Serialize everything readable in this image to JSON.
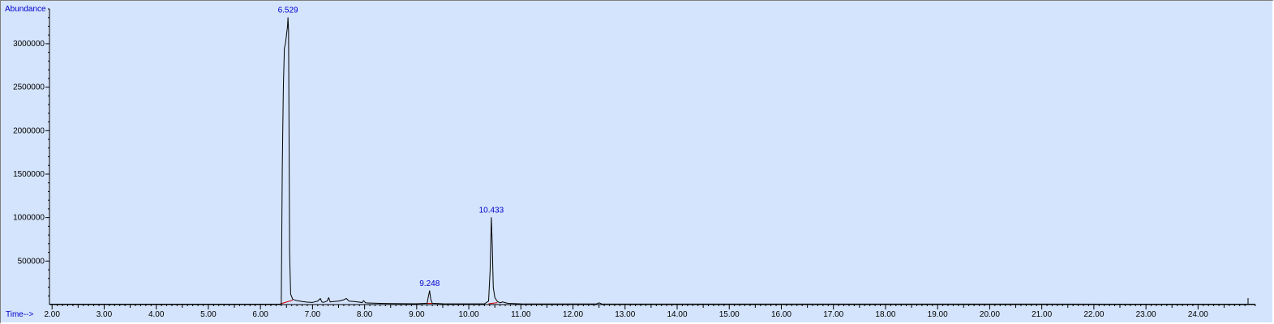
{
  "chart_data": {
    "type": "line",
    "xlabel": "Time-->",
    "ylabel": "Abundance",
    "xlim": [
      1.95,
      25.1
    ],
    "ylim": [
      0,
      3400000
    ],
    "x_ticks": [
      2.0,
      3.0,
      4.0,
      5.0,
      6.0,
      7.0,
      8.0,
      9.0,
      10.0,
      11.0,
      12.0,
      13.0,
      14.0,
      15.0,
      16.0,
      17.0,
      18.0,
      19.0,
      20.0,
      21.0,
      22.0,
      23.0,
      24.0
    ],
    "x_tick_labels": [
      "2.00",
      "3.00",
      "4.00",
      "5.00",
      "6.00",
      "7.00",
      "8.00",
      "9.00",
      "10.00",
      "11.00",
      "12.00",
      "13.00",
      "14.00",
      "15.00",
      "16.00",
      "17.00",
      "18.00",
      "19.00",
      "20.00",
      "21.00",
      "22.00",
      "23.00",
      "24.00"
    ],
    "y_ticks": [
      500000,
      1000000,
      1500000,
      2000000,
      2500000,
      3000000
    ],
    "y_tick_labels": [
      "500000",
      "1000000",
      "1500000",
      "2000000",
      "2500000",
      "3000000"
    ],
    "series": [
      {
        "color": "#000000",
        "x": [
          1.95,
          6.3,
          6.4,
          6.42,
          6.44,
          6.46,
          6.48,
          6.5,
          6.52,
          6.529,
          6.54,
          6.56,
          6.58,
          6.62,
          6.7,
          6.8,
          6.9,
          7.0,
          7.1,
          7.15,
          7.18,
          7.21,
          7.28,
          7.31,
          7.34,
          7.4,
          7.5,
          7.6,
          7.65,
          7.7,
          7.8,
          7.9,
          7.95,
          7.98,
          8.02,
          8.1,
          8.3,
          8.5,
          8.7,
          9.0,
          9.2,
          9.22,
          9.248,
          9.27,
          9.3,
          9.5,
          10.0,
          10.3,
          10.38,
          10.41,
          10.433,
          10.45,
          10.47,
          10.5,
          10.55,
          10.6,
          10.65,
          10.75,
          11.0,
          12.0,
          12.45,
          12.5,
          12.55,
          13.0,
          25.1
        ],
        "y": [
          5000,
          5000,
          5000,
          1600000,
          2500000,
          2950000,
          3000000,
          3100000,
          3200000,
          3300000,
          3150000,
          600000,
          120000,
          60000,
          45000,
          35000,
          28000,
          25000,
          40000,
          70000,
          30000,
          25000,
          40000,
          80000,
          30000,
          35000,
          40000,
          55000,
          70000,
          40000,
          35000,
          28000,
          22000,
          45000,
          20000,
          18000,
          14000,
          12000,
          10000,
          9000,
          15000,
          80000,
          160000,
          60000,
          15000,
          9000,
          8000,
          8000,
          40000,
          400000,
          1000000,
          700000,
          200000,
          80000,
          35000,
          20000,
          30000,
          14000,
          8000,
          7000,
          7000,
          20000,
          7000,
          6000,
          5000
        ]
      }
    ],
    "baselines": [
      {
        "color": "#cc0000",
        "x": [
          6.38,
          6.62
        ],
        "y": [
          8000,
          50000
        ]
      },
      {
        "color": "#cc0000",
        "x": [
          9.2,
          9.3
        ],
        "y": [
          14000,
          14000
        ]
      },
      {
        "color": "#cc0000",
        "x": [
          10.38,
          10.55
        ],
        "y": [
          9000,
          22000
        ]
      }
    ],
    "peak_labels": [
      {
        "text": "6.529",
        "x": 6.529,
        "y": 3300000
      },
      {
        "text": "9.248",
        "x": 9.248,
        "y": 160000
      },
      {
        "text": "10.433",
        "x": 10.433,
        "y": 1000000
      }
    ],
    "grid": false
  }
}
